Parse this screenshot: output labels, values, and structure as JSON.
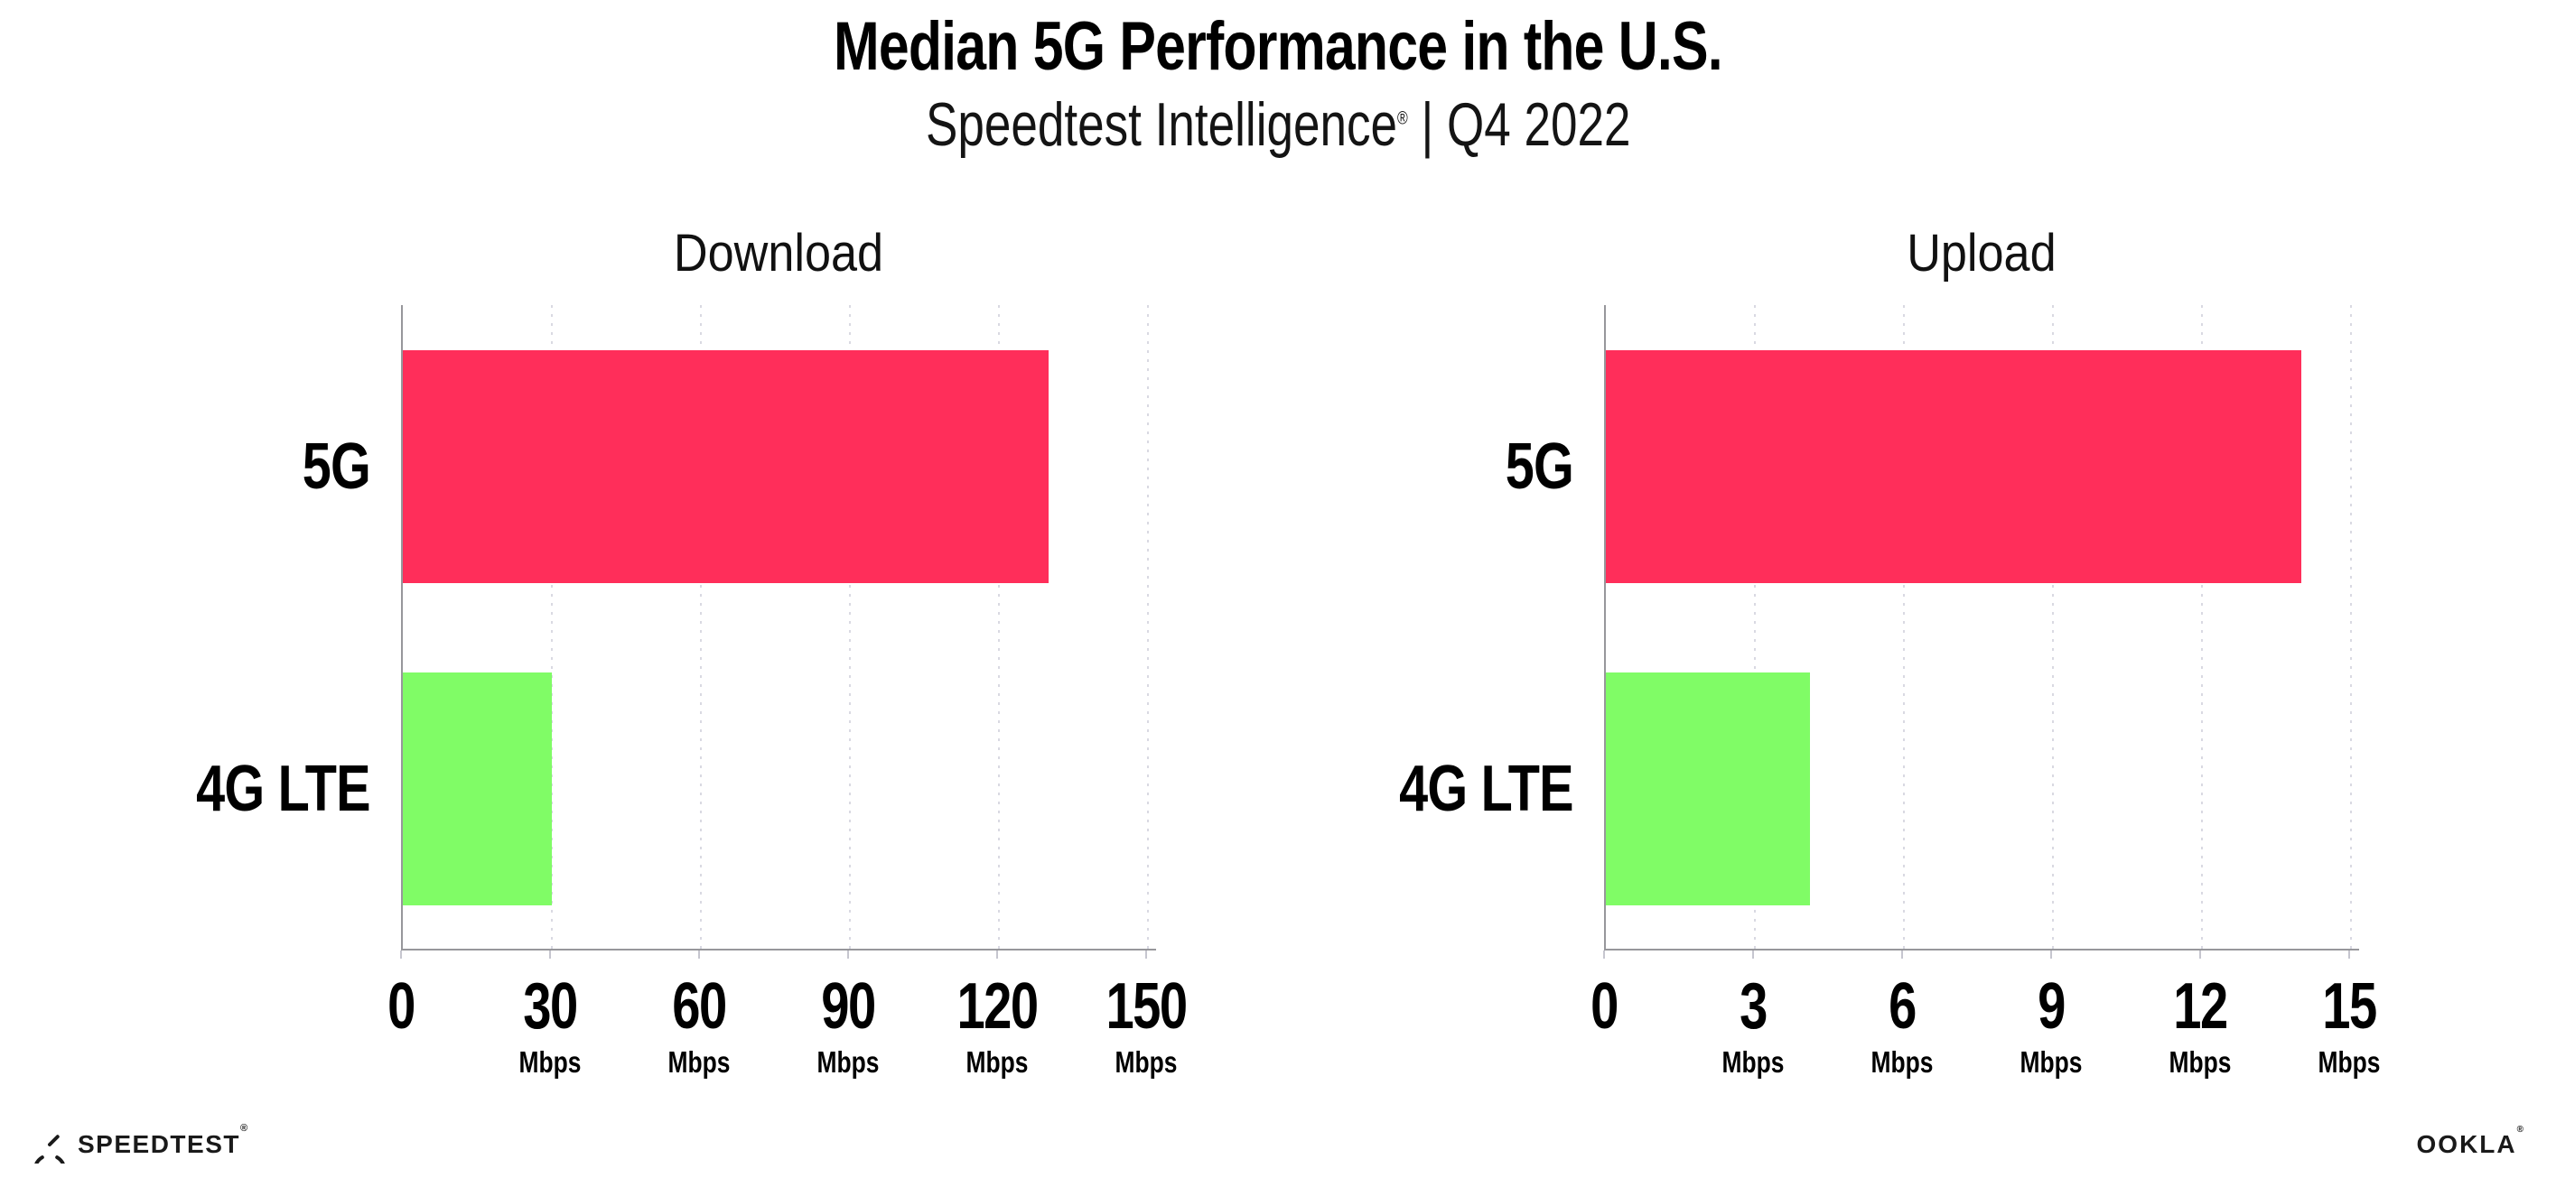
{
  "page": {
    "background": "#ffffff"
  },
  "header": {
    "title": "Median 5G Performance in the U.S.",
    "subtitle_brand": "Speedtest Intelligence",
    "subtitle_reg": "®",
    "subtitle_sep": " | ",
    "subtitle_period": "Q4 2022"
  },
  "footer": {
    "speedtest_wordmark": "SPEEDTEST",
    "speedtest_reg": "®",
    "ookla_wordmark": "OOKLA",
    "ookla_reg": "®"
  },
  "colors": {
    "bar_5g": "#ff2e5a",
    "bar_4g": "#80fc66",
    "axis": "#97979b",
    "gridline": "#d9d9e2",
    "tickmark": "#c6c6cf",
    "text": "#000000"
  },
  "chart_data": [
    {
      "type": "bar",
      "orientation": "horizontal",
      "title": "Download",
      "categories": [
        "5G",
        "4G LTE"
      ],
      "values": [
        130,
        30
      ],
      "unit": "Mbps",
      "xticks": [
        0,
        30,
        60,
        90,
        120,
        150
      ],
      "xlim": [
        0,
        152
      ],
      "grid": "vertical-dotted",
      "legend": "none",
      "bar_colors": [
        "#ff2e5a",
        "#80fc66"
      ]
    },
    {
      "type": "bar",
      "orientation": "horizontal",
      "title": "Upload",
      "categories": [
        "5G",
        "4G LTE"
      ],
      "values": [
        14,
        4.1
      ],
      "unit": "Mbps",
      "xticks": [
        0,
        3,
        6,
        9,
        12,
        15
      ],
      "xlim": [
        0,
        15.2
      ],
      "grid": "vertical-dotted",
      "legend": "none",
      "bar_colors": [
        "#ff2e5a",
        "#80fc66"
      ]
    }
  ]
}
